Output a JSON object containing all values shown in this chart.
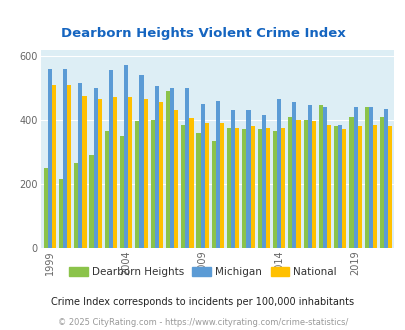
{
  "title": "Dearborn Heights Violent Crime Index",
  "subtitle": "Crime Index corresponds to incidents per 100,000 inhabitants",
  "footer": "© 2025 CityRating.com - https://www.cityrating.com/crime-statistics/",
  "years": [
    1999,
    2000,
    2001,
    2002,
    2003,
    2004,
    2005,
    2006,
    2007,
    2008,
    2009,
    2010,
    2011,
    2012,
    2013,
    2014,
    2015,
    2016,
    2017,
    2018,
    2019,
    2020,
    2021
  ],
  "dearborn_heights": [
    248,
    215,
    265,
    290,
    365,
    350,
    395,
    400,
    490,
    385,
    360,
    335,
    375,
    370,
    370,
    365,
    410,
    400,
    445,
    380,
    410,
    440,
    410
  ],
  "michigan": [
    560,
    560,
    515,
    500,
    555,
    570,
    540,
    505,
    500,
    500,
    450,
    460,
    430,
    430,
    415,
    465,
    455,
    445,
    440,
    385,
    440,
    440,
    435
  ],
  "national": [
    510,
    510,
    475,
    465,
    470,
    470,
    465,
    455,
    430,
    405,
    390,
    390,
    375,
    380,
    375,
    375,
    400,
    395,
    385,
    370,
    380,
    385,
    380
  ],
  "ylim": [
    0,
    620
  ],
  "yticks": [
    0,
    200,
    400,
    600
  ],
  "xtick_years": [
    1999,
    2004,
    2009,
    2014,
    2019
  ],
  "color_dh": "#8bc34a",
  "color_mi": "#5b9bd5",
  "color_na": "#ffc000",
  "bg_color": "#ddeef5",
  "title_color": "#1565c0",
  "grid_color": "#ffffff",
  "tick_label_color": "#666666",
  "subtitle_color": "#222222",
  "footer_color": "#999999",
  "bar_width": 0.27
}
